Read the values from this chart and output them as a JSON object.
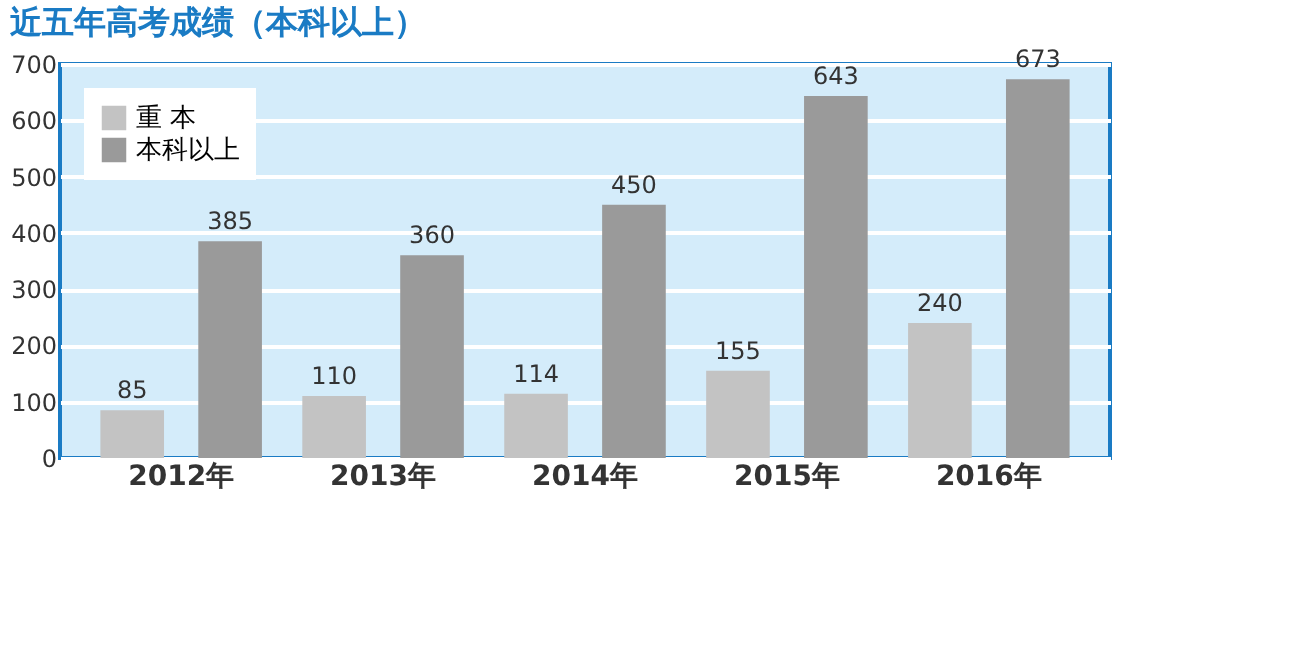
{
  "chart_data": {
    "type": "bar",
    "title": "近五年高考成绩（本科以上）",
    "categories": [
      "2012年",
      "2013年",
      "2014年",
      "2015年",
      "2016年"
    ],
    "series": [
      {
        "name": "重 本",
        "color": "#c3c3c3",
        "values": [
          85,
          110,
          114,
          155,
          240
        ]
      },
      {
        "name": "本科以上",
        "color": "#9a9a9a",
        "values": [
          385,
          360,
          450,
          643,
          673
        ]
      }
    ],
    "ylim": [
      0,
      700
    ],
    "yticks": [
      0,
      100,
      200,
      300,
      400,
      500,
      600,
      700
    ],
    "grid": "y",
    "legend": "top left",
    "data_labels": true
  }
}
